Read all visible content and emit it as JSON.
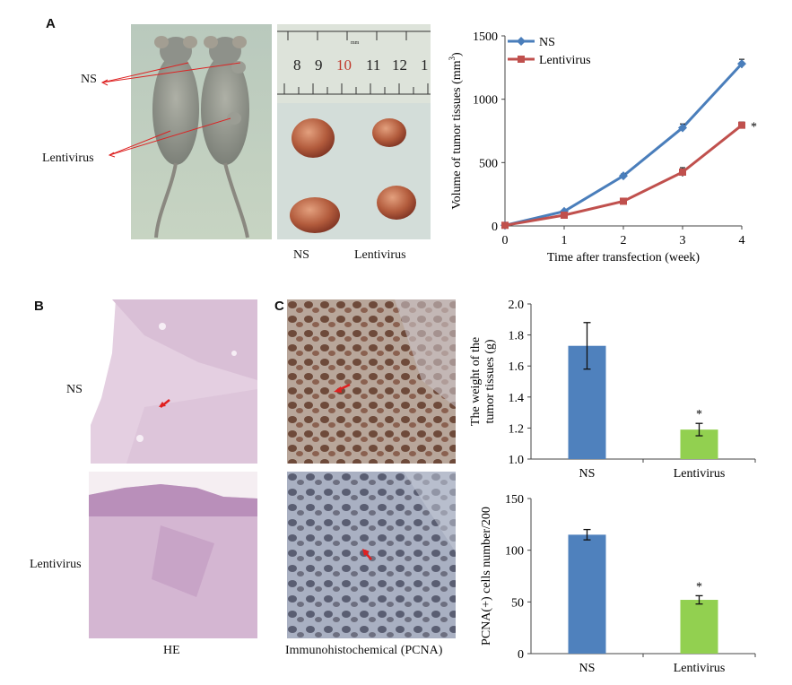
{
  "panels": {
    "A": {
      "letter": "A",
      "mice_labels": [
        "NS",
        "Lentivirus"
      ],
      "ruler_numbers": [
        "8",
        "9",
        "10",
        "11",
        "12",
        "1"
      ],
      "ruler_unit": "mm",
      "tumor_labels": [
        "NS",
        "Lentivirus"
      ]
    },
    "B": {
      "letter": "B",
      "row_labels": [
        "NS",
        "Lentivirus"
      ],
      "caption": "HE"
    },
    "C": {
      "letter": "C",
      "caption": "Immunohistochemical (PCNA)"
    }
  },
  "colors": {
    "ns_line": "#4a7ebb",
    "lentivirus_line": "#c0504d",
    "ns_bar": "#4f81bd",
    "lentivirus_bar": "#92d050",
    "arrow": "#e02020"
  },
  "chart_data": [
    {
      "type": "line",
      "xlabel": "Time after transfection (week)",
      "ylabel": "Volume of tumor tissues (mm",
      "ylabel_sup": "3",
      "ylabel_end": ")",
      "x": [
        0,
        1,
        2,
        3,
        4
      ],
      "xticks": [
        "0",
        "1",
        "2",
        "3",
        "4"
      ],
      "ylim": [
        0,
        1500
      ],
      "yticks": [
        "0",
        "500",
        "1000",
        "1500"
      ],
      "legend": "top-left",
      "series": [
        {
          "name": "NS",
          "values": [
            5,
            115,
            395,
            775,
            1280
          ],
          "errors": [
            5,
            10,
            15,
            30,
            35
          ]
        },
        {
          "name": "Lentivirus",
          "values": [
            5,
            85,
            195,
            425,
            795
          ],
          "errors": [
            5,
            10,
            12,
            35,
            25
          ]
        }
      ],
      "annotation": "*"
    },
    {
      "type": "bar",
      "ylabel": "The weight of the",
      "ylabel2": "tumor tissues (g)",
      "categories": [
        "NS",
        "Lentivirus"
      ],
      "values": [
        1.73,
        1.19
      ],
      "errors": [
        0.15,
        0.04
      ],
      "ylim": [
        1.0,
        2.0
      ],
      "yticks": [
        "1.0",
        "1.2",
        "1.4",
        "1.6",
        "1.8",
        "2.0"
      ],
      "annotation": "*"
    },
    {
      "type": "bar",
      "ylabel": "PCNA(+) cells number/200",
      "categories": [
        "NS",
        "Lentivirus"
      ],
      "values": [
        115,
        52
      ],
      "errors": [
        5,
        4
      ],
      "ylim": [
        0,
        150
      ],
      "yticks": [
        "0",
        "50",
        "100",
        "150"
      ],
      "annotation": "*"
    }
  ]
}
